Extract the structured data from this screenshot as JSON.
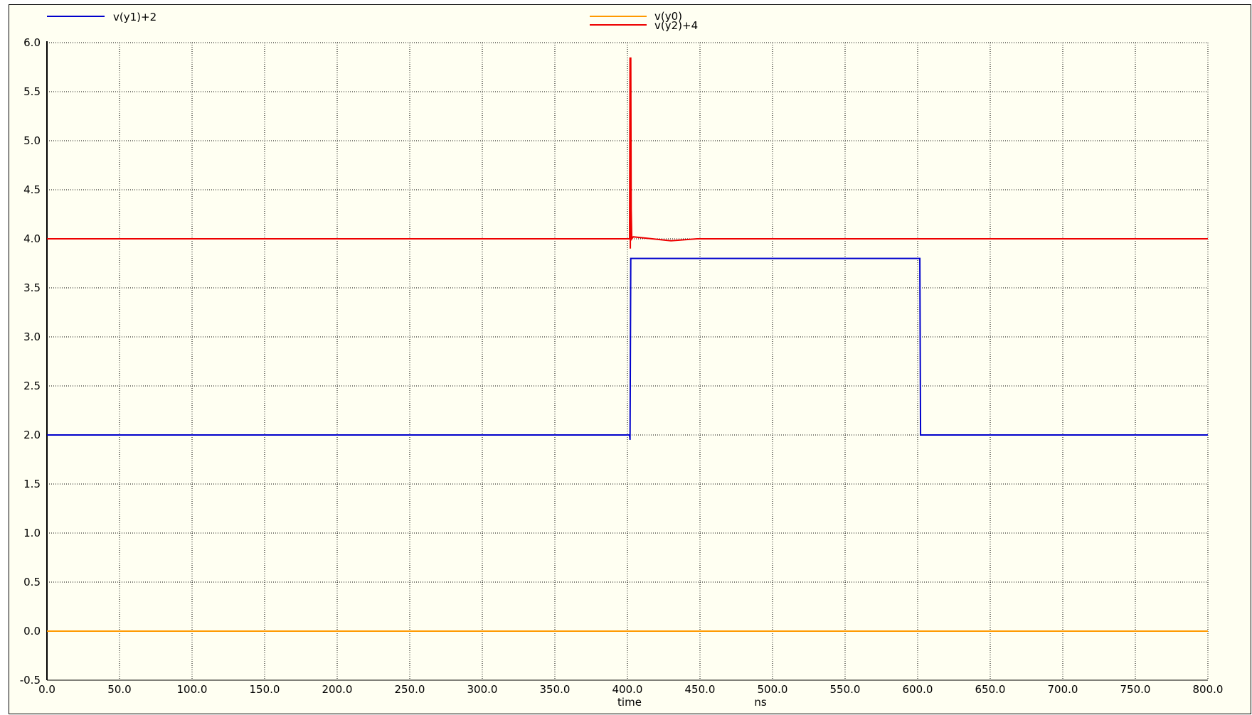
{
  "chart_data": {
    "type": "line",
    "xlabel": "time",
    "xunit": "ns",
    "xlim": [
      0,
      800
    ],
    "ylim": [
      -0.5,
      6.0
    ],
    "x_ticks": [
      "0.0",
      "50.0",
      "100.0",
      "150.0",
      "200.0",
      "250.0",
      "300.0",
      "350.0",
      "400.0",
      "450.0",
      "500.0",
      "550.0",
      "600.0",
      "650.0",
      "700.0",
      "750.0",
      "800.0"
    ],
    "y_ticks": [
      "-0.5",
      "0.0",
      "0.5",
      "1.0",
      "1.5",
      "2.0",
      "2.5",
      "3.0",
      "3.5",
      "4.0",
      "4.5",
      "5.0",
      "5.5",
      "6.0"
    ],
    "grid": true,
    "legend": [
      "v(y1)+2",
      "v(y0)",
      "v(y2)+4"
    ],
    "series": [
      {
        "name": "v(y1)+2",
        "color": "#0000cc",
        "x": [
          0,
          401.5,
          401.8,
          402.3,
          403,
          601,
          601.5,
          602,
          800
        ],
        "y": [
          2.0,
          2.0,
          1.95,
          3.8,
          3.8,
          3.8,
          3.8,
          2.0,
          2.0
        ]
      },
      {
        "name": "v(y0)",
        "color": "#ff9900",
        "x": [
          0,
          800
        ],
        "y": [
          0.0,
          0.0
        ]
      },
      {
        "name": "v(y2)+4",
        "color": "#ee0000",
        "x": [
          0,
          401.5,
          401.8,
          402.0,
          402.3,
          402.6,
          403.0,
          404,
          430,
          448,
          450,
          800
        ],
        "y": [
          4.0,
          4.0,
          5.85,
          3.9,
          5.85,
          4.3,
          4.0,
          4.02,
          3.98,
          4.0,
          4.0,
          4.0
        ]
      }
    ]
  }
}
